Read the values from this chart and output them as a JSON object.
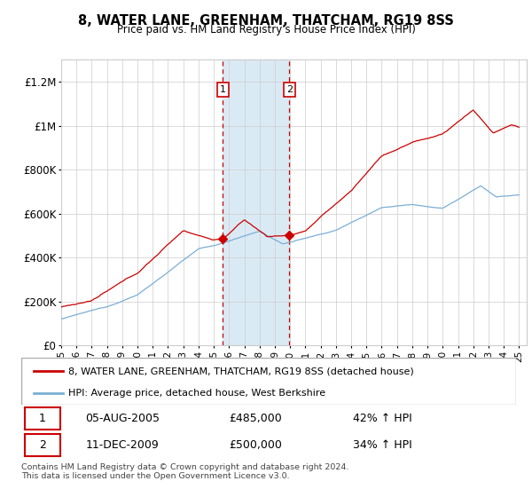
{
  "title": "8, WATER LANE, GREENHAM, THATCHAM, RG19 8SS",
  "subtitle": "Price paid vs. HM Land Registry's House Price Index (HPI)",
  "ylim": [
    0,
    1300000
  ],
  "yticks": [
    0,
    200000,
    400000,
    600000,
    800000,
    1000000,
    1200000
  ],
  "ytick_labels": [
    "£0",
    "£200K",
    "£400K",
    "£600K",
    "£800K",
    "£1M",
    "£1.2M"
  ],
  "xlim_start": 1995.0,
  "xlim_end": 2025.5,
  "sale1_year": 2005.587,
  "sale1_price": 485000,
  "sale2_year": 2009.945,
  "sale2_price": 500000,
  "line_color_price": "#cc0000",
  "line_color_hpi": "#7aafd4",
  "shade_color": "#daeaf5",
  "vline_color": "#cc0000",
  "legend_label_price": "8, WATER LANE, GREENHAM, THATCHAM, RG19 8SS (detached house)",
  "legend_label_hpi": "HPI: Average price, detached house, West Berkshire",
  "footer1": "Contains HM Land Registry data © Crown copyright and database right 2024.",
  "footer2": "This data is licensed under the Open Government Licence v3.0.",
  "table_row1_date": "05-AUG-2005",
  "table_row1_price": "£485,000",
  "table_row1_pct": "42% ↑ HPI",
  "table_row2_date": "11-DEC-2009",
  "table_row2_price": "£500,000",
  "table_row2_pct": "34% ↑ HPI"
}
